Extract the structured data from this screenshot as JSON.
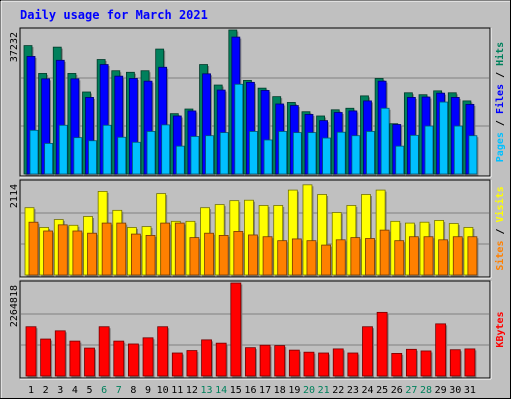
{
  "title": "Daily usage for March 2021",
  "colors": {
    "background": "#c0c0c0",
    "title": "#0000ff",
    "hits": "#00805c",
    "files": "#0000ff",
    "pages": "#00c0ff",
    "visits": "#ffff00",
    "sites": "#ff8000",
    "kbytes": "#ff0000",
    "weekend_label": "#00805c",
    "weekday_label": "#000000"
  },
  "chart_data": [
    {
      "type": "bar",
      "ylabel_parts": [
        {
          "text": "Pages",
          "color": "#00c0ff"
        },
        {
          "text": " / ",
          "color": "#000000"
        },
        {
          "text": "Files",
          "color": "#0000ff"
        },
        {
          "text": " / ",
          "color": "#000000"
        },
        {
          "text": "Hits",
          "color": "#00805c"
        }
      ],
      "ymax_label": "37232",
      "ylim": [
        0,
        37232
      ],
      "categories": [
        "1",
        "2",
        "3",
        "4",
        "5",
        "6",
        "7",
        "8",
        "9",
        "10",
        "11",
        "12",
        "13",
        "14",
        "15",
        "16",
        "17",
        "18",
        "19",
        "20",
        "21",
        "22",
        "23",
        "24",
        "25",
        "26",
        "27",
        "28",
        "29",
        "30",
        "31"
      ],
      "weekend_days": [
        "6",
        "7",
        "13",
        "14",
        "20",
        "21",
        "27",
        "28"
      ],
      "series": [
        {
          "name": "Hits",
          "values": [
            33200,
            26000,
            32800,
            26000,
            21200,
            29600,
            26700,
            26300,
            26700,
            32300,
            15600,
            16800,
            28300,
            23000,
            37232,
            24200,
            22200,
            20000,
            18500,
            16100,
            15000,
            16600,
            17000,
            20200,
            24700,
            13000,
            21000,
            20500,
            21500,
            21000,
            18900
          ]
        },
        {
          "name": "Files",
          "values": [
            30400,
            24600,
            29400,
            24600,
            19800,
            28300,
            25300,
            24700,
            24000,
            27600,
            15000,
            16300,
            25900,
            21700,
            35400,
            23700,
            21600,
            18100,
            17700,
            15400,
            13800,
            15900,
            16300,
            18900,
            24000,
            12800,
            19800,
            19900,
            20900,
            19800,
            18000
          ]
        },
        {
          "name": "Pages",
          "values": [
            11300,
            7900,
            12600,
            9400,
            8600,
            12600,
            9500,
            8200,
            11000,
            12700,
            7200,
            9700,
            9900,
            10700,
            23200,
            11000,
            8800,
            11000,
            10700,
            10700,
            9300,
            10800,
            9900,
            11000,
            17000,
            7200,
            10000,
            12400,
            18600,
            12400,
            9900
          ]
        }
      ]
    },
    {
      "type": "bar",
      "ylabel_parts": [
        {
          "text": "Sites",
          "color": "#ff8000"
        },
        {
          "text": " / ",
          "color": "#000000"
        },
        {
          "text": "Visits",
          "color": "#ffff00"
        }
      ],
      "ymax_label": "2114",
      "ylim": [
        0,
        2114
      ],
      "categories": [
        "1",
        "2",
        "3",
        "4",
        "5",
        "6",
        "7",
        "8",
        "9",
        "10",
        "11",
        "12",
        "13",
        "14",
        "15",
        "16",
        "17",
        "18",
        "19",
        "20",
        "21",
        "22",
        "23",
        "24",
        "25",
        "26",
        "27",
        "28",
        "29",
        "30",
        "31"
      ],
      "series": [
        {
          "name": "Visits",
          "values": [
            1530,
            1080,
            1260,
            1130,
            1330,
            1900,
            1470,
            1080,
            1100,
            1850,
            1220,
            1220,
            1530,
            1600,
            1690,
            1700,
            1580,
            1580,
            1930,
            2050,
            1830,
            1420,
            1580,
            1830,
            1930,
            1220,
            1180,
            1200,
            1240,
            1170,
            1080
          ]
        },
        {
          "name": "Sites",
          "values": [
            1200,
            1000,
            1140,
            1000,
            950,
            1180,
            1180,
            930,
            900,
            1180,
            1180,
            850,
            950,
            900,
            990,
            910,
            870,
            780,
            820,
            780,
            680,
            800,
            850,
            830,
            1020,
            780,
            870,
            870,
            800,
            870,
            870
          ]
        }
      ]
    },
    {
      "type": "bar",
      "ylabel_parts": [
        {
          "text": "KBytes",
          "color": "#ff0000"
        }
      ],
      "ymax_label": "2264818",
      "ylim": [
        0,
        2264818
      ],
      "categories": [
        "1",
        "2",
        "3",
        "4",
        "5",
        "6",
        "7",
        "8",
        "9",
        "10",
        "11",
        "12",
        "13",
        "14",
        "15",
        "16",
        "17",
        "18",
        "19",
        "20",
        "21",
        "22",
        "23",
        "24",
        "25",
        "26",
        "27",
        "28",
        "29",
        "30",
        "31"
      ],
      "series": [
        {
          "name": "KBytes",
          "values": [
            1200000,
            900000,
            1100000,
            850000,
            680000,
            1200000,
            850000,
            780000,
            930000,
            1200000,
            560000,
            620000,
            880000,
            800000,
            2264818,
            690000,
            750000,
            740000,
            630000,
            580000,
            560000,
            660000,
            560000,
            1200000,
            1550000,
            550000,
            650000,
            610000,
            1270000,
            640000,
            660000
          ]
        }
      ]
    }
  ]
}
